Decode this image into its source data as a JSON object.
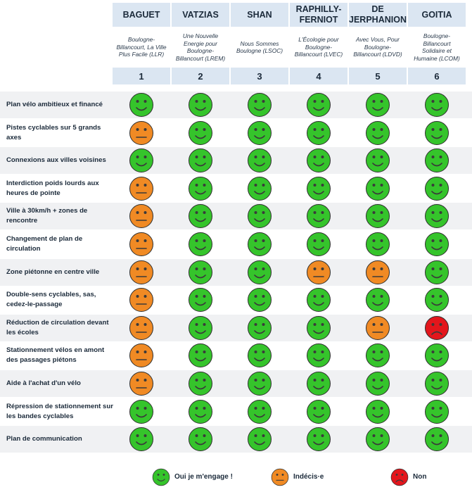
{
  "candidates": [
    {
      "name": "BAGUET",
      "list": "Boulogne-Billancourt, La Ville Plus Facile (LLR)",
      "number": "1"
    },
    {
      "name": "VATZIAS",
      "list": "Une Nouvelle Energie pour Boulogne-Billancourt (LREM)",
      "number": "2"
    },
    {
      "name": "SHAN",
      "list": "Nous Sommes Boulogne (LSOC)",
      "number": "3"
    },
    {
      "name": "RAPHILLY-FERNIOT",
      "list": "L'Écologie pour Boulogne-Billancourt (LVEC)",
      "number": "4"
    },
    {
      "name": "DE JERPHANION",
      "list": "Avec Vous, Pour Boulogne-Billancourt (LDVD)",
      "number": "5"
    },
    {
      "name": "GOITIA",
      "list": "Boulogne-Billancourt Solidaire et Humaine (LCOM)",
      "number": "6"
    }
  ],
  "rows": [
    {
      "label": "Plan vélo ambitieux et financé",
      "answers": [
        "yes",
        "yes",
        "yes",
        "yes",
        "yes",
        "yes"
      ]
    },
    {
      "label": "Pistes cyclables sur 5 grands axes",
      "answers": [
        "undecided",
        "yes",
        "yes",
        "yes",
        "yes",
        "yes"
      ]
    },
    {
      "label": "Connexions aux villes voisines",
      "answers": [
        "yes",
        "yes",
        "yes",
        "yes",
        "yes",
        "yes"
      ]
    },
    {
      "label": "Interdiction poids lourds aux heures de pointe",
      "answers": [
        "undecided",
        "yes",
        "yes",
        "yes",
        "yes",
        "yes"
      ]
    },
    {
      "label": "Ville à 30km/h + zones de rencontre",
      "answers": [
        "undecided",
        "yes",
        "yes",
        "yes",
        "yes",
        "yes"
      ]
    },
    {
      "label": "Changement de plan de circulation",
      "answers": [
        "undecided",
        "yes",
        "yes",
        "yes",
        "yes",
        "yes"
      ]
    },
    {
      "label": "Zone piétonne en centre ville",
      "answers": [
        "undecided",
        "yes",
        "yes",
        "undecided",
        "undecided",
        "yes"
      ]
    },
    {
      "label": "Double-sens cyclables, sas, cedez-le-passage",
      "answers": [
        "undecided",
        "yes",
        "yes",
        "yes",
        "yes",
        "yes"
      ]
    },
    {
      "label": "Réduction de circulation devant les écoles",
      "answers": [
        "undecided",
        "yes",
        "yes",
        "yes",
        "undecided",
        "no"
      ]
    },
    {
      "label": "Stationnement vélos en amont des passages piétons",
      "answers": [
        "undecided",
        "yes",
        "yes",
        "yes",
        "yes",
        "yes"
      ]
    },
    {
      "label": "Aide à l'achat d'un vélo",
      "answers": [
        "undecided",
        "yes",
        "yes",
        "yes",
        "yes",
        "yes"
      ]
    },
    {
      "label": "Répression de stationnement sur les bandes cyclables",
      "answers": [
        "yes",
        "yes",
        "yes",
        "yes",
        "yes",
        "yes"
      ]
    },
    {
      "label": "Plan de communication",
      "answers": [
        "yes",
        "yes",
        "yes",
        "yes",
        "yes",
        "yes"
      ]
    }
  ],
  "legend": [
    {
      "key": "yes",
      "label": "Oui je m'engage !"
    },
    {
      "key": "undecided",
      "label": "Indécis·e"
    },
    {
      "key": "no",
      "label": "Non"
    }
  ],
  "colors": {
    "yes": "#35c42b",
    "undecided": "#f08a24",
    "no": "#e3161c",
    "header_bg": "#dbe6f2",
    "row_shade": "#f0f1f3"
  }
}
